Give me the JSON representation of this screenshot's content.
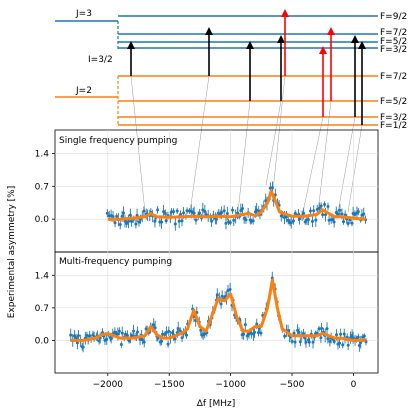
{
  "colors": {
    "upper": "#1f77b4",
    "lower": "#ff7f0e",
    "transition_black": "#000000",
    "transition_red": "#ff0000",
    "data_points": "#1f77b4",
    "fit": "#ff7f0e",
    "connector": "#999999"
  },
  "diagram": {
    "j_upper": "J=3",
    "j_lower": "J=2",
    "i_label": "I=3/2",
    "upper_levels": [
      "F=9/2",
      "F=7/2",
      "F=5/2",
      "F=3/2"
    ],
    "lower_levels": [
      "F=7/2",
      "F=5/2",
      "F=3/2",
      "F=1/2"
    ]
  },
  "chart_data": [
    {
      "type": "scatter",
      "title": "Single frequency pumping",
      "xlabel": "Δf [MHz]",
      "ylabel": "Experimental asymmetry [%]",
      "xlim": [
        -2430,
        200
      ],
      "ylim": [
        -0.7,
        1.9
      ],
      "yticks": [
        0.0,
        0.7,
        1.4
      ],
      "grid": true,
      "series": [
        {
          "kind": "fit",
          "x": [
            -2000,
            -1900,
            -1800,
            -1700,
            -1650,
            -1600,
            -1500,
            -1400,
            -1300,
            -1200,
            -1100,
            -1000,
            -900,
            -850,
            -800,
            -750,
            -700,
            -670,
            -640,
            -600,
            -500,
            -400,
            -300,
            -250,
            -200,
            -150,
            -100,
            -50,
            0,
            100
          ],
          "y": [
            0.0,
            0.0,
            0.02,
            0.05,
            0.12,
            0.05,
            0.04,
            0.05,
            0.06,
            0.05,
            0.06,
            0.05,
            0.1,
            0.12,
            0.07,
            0.15,
            0.35,
            0.6,
            0.42,
            0.15,
            0.06,
            0.06,
            0.1,
            0.2,
            0.12,
            0.05,
            0.05,
            0.04,
            0.02,
            0.0
          ]
        }
      ]
    },
    {
      "type": "scatter",
      "title": "Multi-frequency pumping",
      "xlabel": "Δf [MHz]",
      "ylabel": "Experimental asymmetry [%]",
      "xlim": [
        -2430,
        200
      ],
      "ylim": [
        -0.7,
        1.9
      ],
      "yticks": [
        0.0,
        0.7,
        1.4
      ],
      "xticks": [
        -2000,
        -1500,
        -1000,
        -500,
        0
      ],
      "grid": true,
      "series": [
        {
          "kind": "fit",
          "x": [
            -2300,
            -2200,
            -2100,
            -2050,
            -2000,
            -1950,
            -1900,
            -1800,
            -1700,
            -1650,
            -1600,
            -1550,
            -1500,
            -1450,
            -1400,
            -1350,
            -1300,
            -1250,
            -1200,
            -1150,
            -1100,
            -1050,
            -1000,
            -950,
            -900,
            -850,
            -800,
            -750,
            -700,
            -660,
            -620,
            -580,
            -500,
            -400,
            -350,
            -300,
            -250,
            -200,
            -150,
            -100,
            -50,
            0,
            50,
            100
          ],
          "y": [
            0.0,
            0.0,
            0.05,
            0.12,
            0.15,
            0.1,
            0.05,
            0.05,
            0.1,
            0.3,
            0.12,
            0.05,
            0.05,
            0.1,
            0.15,
            0.25,
            0.65,
            0.3,
            0.2,
            0.55,
            0.9,
            0.85,
            1.0,
            0.5,
            0.2,
            0.2,
            0.3,
            0.3,
            0.7,
            1.3,
            0.7,
            0.25,
            0.1,
            0.1,
            0.1,
            0.1,
            0.15,
            0.1,
            0.05,
            0.05,
            0.02,
            0.0,
            0.0,
            0.0
          ]
        }
      ]
    }
  ]
}
